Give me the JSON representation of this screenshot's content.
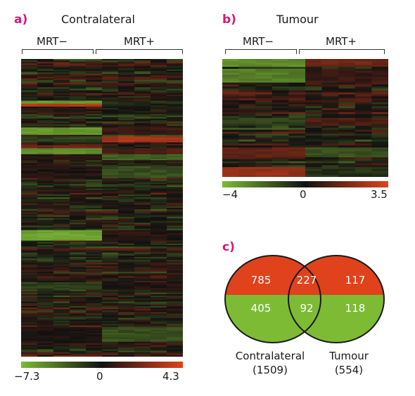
{
  "panels": {
    "a": {
      "letter": "a)",
      "title": "Contralateral",
      "groups": [
        "MRT−",
        "MRT+"
      ],
      "scale": {
        "min_label": "−7.3",
        "mid_label": "0",
        "max_label": "4.3",
        "min": -7.3,
        "max": 4.3
      },
      "rows": 200,
      "columns": 10,
      "groups_columns": [
        5,
        5
      ]
    },
    "b": {
      "letter": "b)",
      "title": "Tumour",
      "groups": [
        "MRT−",
        "MRT+"
      ],
      "scale": {
        "min_label": "−4",
        "mid_label": "0",
        "max_label": "3.5",
        "min": -4,
        "max": 3.5
      },
      "rows": 60,
      "columns": 10,
      "groups_columns": [
        5,
        5
      ]
    },
    "c": {
      "letter": "c)",
      "venn": {
        "left_up": "785",
        "overlap_up": "227",
        "right_up": "117",
        "left_down": "405",
        "overlap_down": "92",
        "right_down": "118",
        "left_name": "Contralateral",
        "left_total": "(1509)",
        "right_name": "Tumour",
        "right_total": "(554)"
      }
    }
  },
  "colors": {
    "up": "#e0421c",
    "down": "#7dbb35",
    "zero": "#111111",
    "accent": "#d6187a"
  }
}
